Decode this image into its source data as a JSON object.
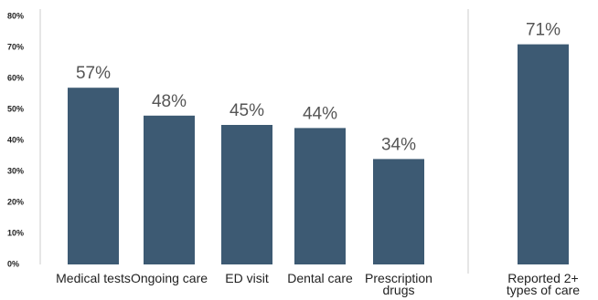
{
  "chart_data": {
    "type": "bar",
    "categories": [
      "Medical tests",
      "Ongoing care",
      "ED visit",
      "Dental care",
      "Prescription drugs",
      "Reported 2+ types of care"
    ],
    "values": [
      57,
      48,
      45,
      44,
      34,
      71
    ],
    "value_labels": [
      "57%",
      "48%",
      "45%",
      "44%",
      "34%",
      "71%"
    ],
    "color": "#3d5a73",
    "ylim": [
      0,
      80
    ],
    "yticks": [
      {
        "value": 0,
        "label": "0%"
      },
      {
        "value": 10,
        "label": "10%"
      },
      {
        "value": 20,
        "label": "20%"
      },
      {
        "value": 30,
        "label": "30%"
      },
      {
        "value": 40,
        "label": "40%"
      },
      {
        "value": 50,
        "label": "50%"
      },
      {
        "value": 60,
        "label": "60%"
      },
      {
        "value": 70,
        "label": "70%"
      },
      {
        "value": 80,
        "label": "80%"
      }
    ],
    "grid": false
  }
}
